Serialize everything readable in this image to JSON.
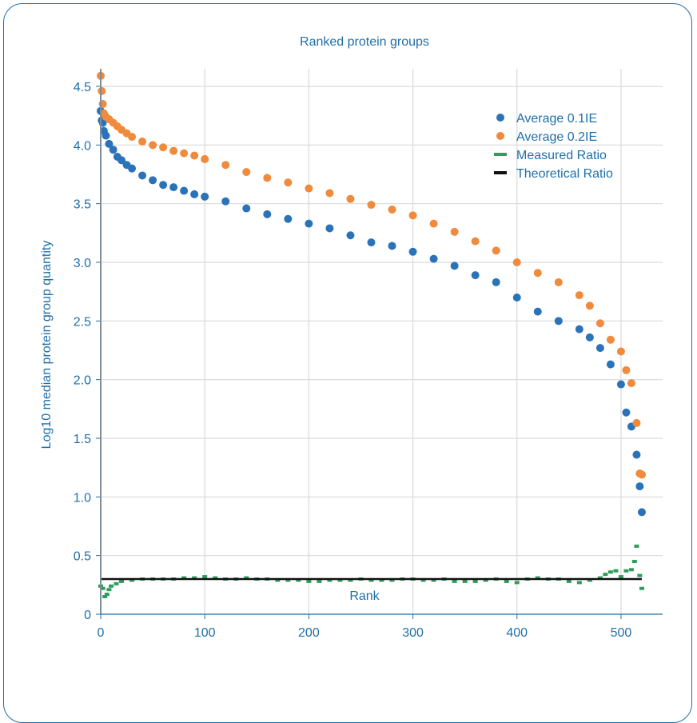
{
  "chart_data": {
    "type": "scatter",
    "title": "Ranked protein groups",
    "xlabel": "Rank",
    "ylabel": "Log10 median protein group quantity",
    "xlim": [
      0,
      540
    ],
    "ylim": [
      0,
      4.65
    ],
    "xticks": [
      "0",
      "100",
      "200",
      "300",
      "400",
      "500"
    ],
    "yticks": [
      "0",
      "0.5",
      "1.0",
      "1.5",
      "2.0",
      "2.5",
      "3.0",
      "3.5",
      "4.0",
      "4.5"
    ],
    "grid": true,
    "legend_position": "top-right",
    "theoretical_ratio": 0.3,
    "series": [
      {
        "name": "Average 0.1IE",
        "color": "#2a73b9",
        "kind": "points",
        "x": [
          0,
          1,
          2,
          3,
          5,
          8,
          12,
          16,
          20,
          25,
          30,
          40,
          50,
          60,
          70,
          80,
          90,
          100,
          120,
          140,
          160,
          180,
          200,
          220,
          240,
          260,
          280,
          300,
          320,
          340,
          360,
          380,
          400,
          420,
          440,
          460,
          470,
          480,
          490,
          500,
          505,
          510,
          515,
          518,
          520
        ],
        "y": [
          4.29,
          4.21,
          4.19,
          4.12,
          4.08,
          4.01,
          3.96,
          3.9,
          3.87,
          3.83,
          3.8,
          3.74,
          3.7,
          3.66,
          3.64,
          3.61,
          3.58,
          3.56,
          3.52,
          3.46,
          3.41,
          3.37,
          3.33,
          3.29,
          3.23,
          3.17,
          3.14,
          3.09,
          3.03,
          2.97,
          2.89,
          2.83,
          2.7,
          2.58,
          2.5,
          2.43,
          2.36,
          2.27,
          2.13,
          1.96,
          1.72,
          1.6,
          1.36,
          1.09,
          0.87
        ]
      },
      {
        "name": "Average 0.2IE",
        "color": "#f08a3c",
        "kind": "points",
        "x": [
          0,
          1,
          2,
          3,
          5,
          8,
          12,
          16,
          20,
          25,
          30,
          40,
          50,
          60,
          70,
          80,
          90,
          100,
          120,
          140,
          160,
          180,
          200,
          220,
          240,
          260,
          280,
          300,
          320,
          340,
          360,
          380,
          400,
          420,
          440,
          460,
          470,
          480,
          490,
          500,
          505,
          510,
          515,
          518,
          520
        ],
        "y": [
          4.59,
          4.46,
          4.35,
          4.27,
          4.24,
          4.22,
          4.19,
          4.16,
          4.13,
          4.1,
          4.07,
          4.03,
          4.0,
          3.98,
          3.95,
          3.93,
          3.91,
          3.88,
          3.83,
          3.77,
          3.72,
          3.68,
          3.63,
          3.59,
          3.54,
          3.49,
          3.45,
          3.4,
          3.33,
          3.26,
          3.18,
          3.1,
          3.0,
          2.91,
          2.83,
          2.72,
          2.63,
          2.48,
          2.34,
          2.24,
          2.08,
          1.97,
          1.63,
          1.2,
          1.19
        ]
      },
      {
        "name": "Measured Ratio",
        "color": "#2e9e5a",
        "kind": "dashes",
        "x": [
          0,
          2,
          4,
          6,
          8,
          10,
          15,
          20,
          30,
          40,
          50,
          60,
          70,
          80,
          90,
          100,
          110,
          120,
          130,
          140,
          150,
          160,
          170,
          180,
          190,
          200,
          210,
          220,
          230,
          240,
          250,
          260,
          270,
          280,
          290,
          300,
          310,
          320,
          330,
          340,
          350,
          360,
          370,
          380,
          390,
          400,
          410,
          420,
          430,
          440,
          450,
          460,
          470,
          480,
          485,
          490,
          495,
          500,
          505,
          510,
          513,
          515,
          518,
          520
        ],
        "y": [
          0.24,
          0.22,
          0.15,
          0.17,
          0.21,
          0.24,
          0.26,
          0.28,
          0.29,
          0.3,
          0.3,
          0.3,
          0.3,
          0.31,
          0.31,
          0.32,
          0.31,
          0.3,
          0.3,
          0.31,
          0.3,
          0.3,
          0.29,
          0.29,
          0.29,
          0.28,
          0.28,
          0.29,
          0.29,
          0.29,
          0.3,
          0.29,
          0.29,
          0.29,
          0.3,
          0.3,
          0.29,
          0.29,
          0.3,
          0.28,
          0.28,
          0.28,
          0.29,
          0.3,
          0.28,
          0.27,
          0.3,
          0.31,
          0.3,
          0.3,
          0.28,
          0.27,
          0.29,
          0.31,
          0.34,
          0.36,
          0.37,
          0.32,
          0.37,
          0.38,
          0.45,
          0.58,
          0.33,
          0.22
        ]
      },
      {
        "name": "Theoretical Ratio",
        "color": "#111111",
        "kind": "line",
        "x": [
          0,
          520
        ],
        "y": [
          0.3,
          0.3
        ]
      }
    ]
  }
}
